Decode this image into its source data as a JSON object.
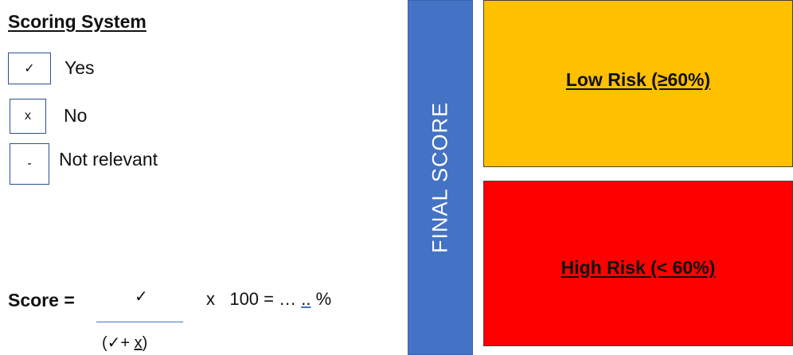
{
  "scoring": {
    "title": "Scoring System",
    "items": [
      {
        "symbol": "✓",
        "label": "Yes"
      },
      {
        "symbol": "x",
        "label": "No"
      },
      {
        "symbol": "-",
        "label": "Not relevant"
      }
    ]
  },
  "formula": {
    "label": "Score =",
    "numerator": "✓",
    "denominator_open": "(✓+ ",
    "denominator_x": "x",
    "denominator_close": ")",
    "multiply": "x   100 = … ",
    "blank": "..",
    "percent": " %"
  },
  "final_score": {
    "label": "FINAL SCORE",
    "color": "#4472c4"
  },
  "risk": {
    "low": {
      "label": "Low Risk  (≥60%)",
      "color": "#ffc000"
    },
    "high": {
      "label": "High Risk (< 60%)",
      "color": "#ff0000"
    }
  }
}
